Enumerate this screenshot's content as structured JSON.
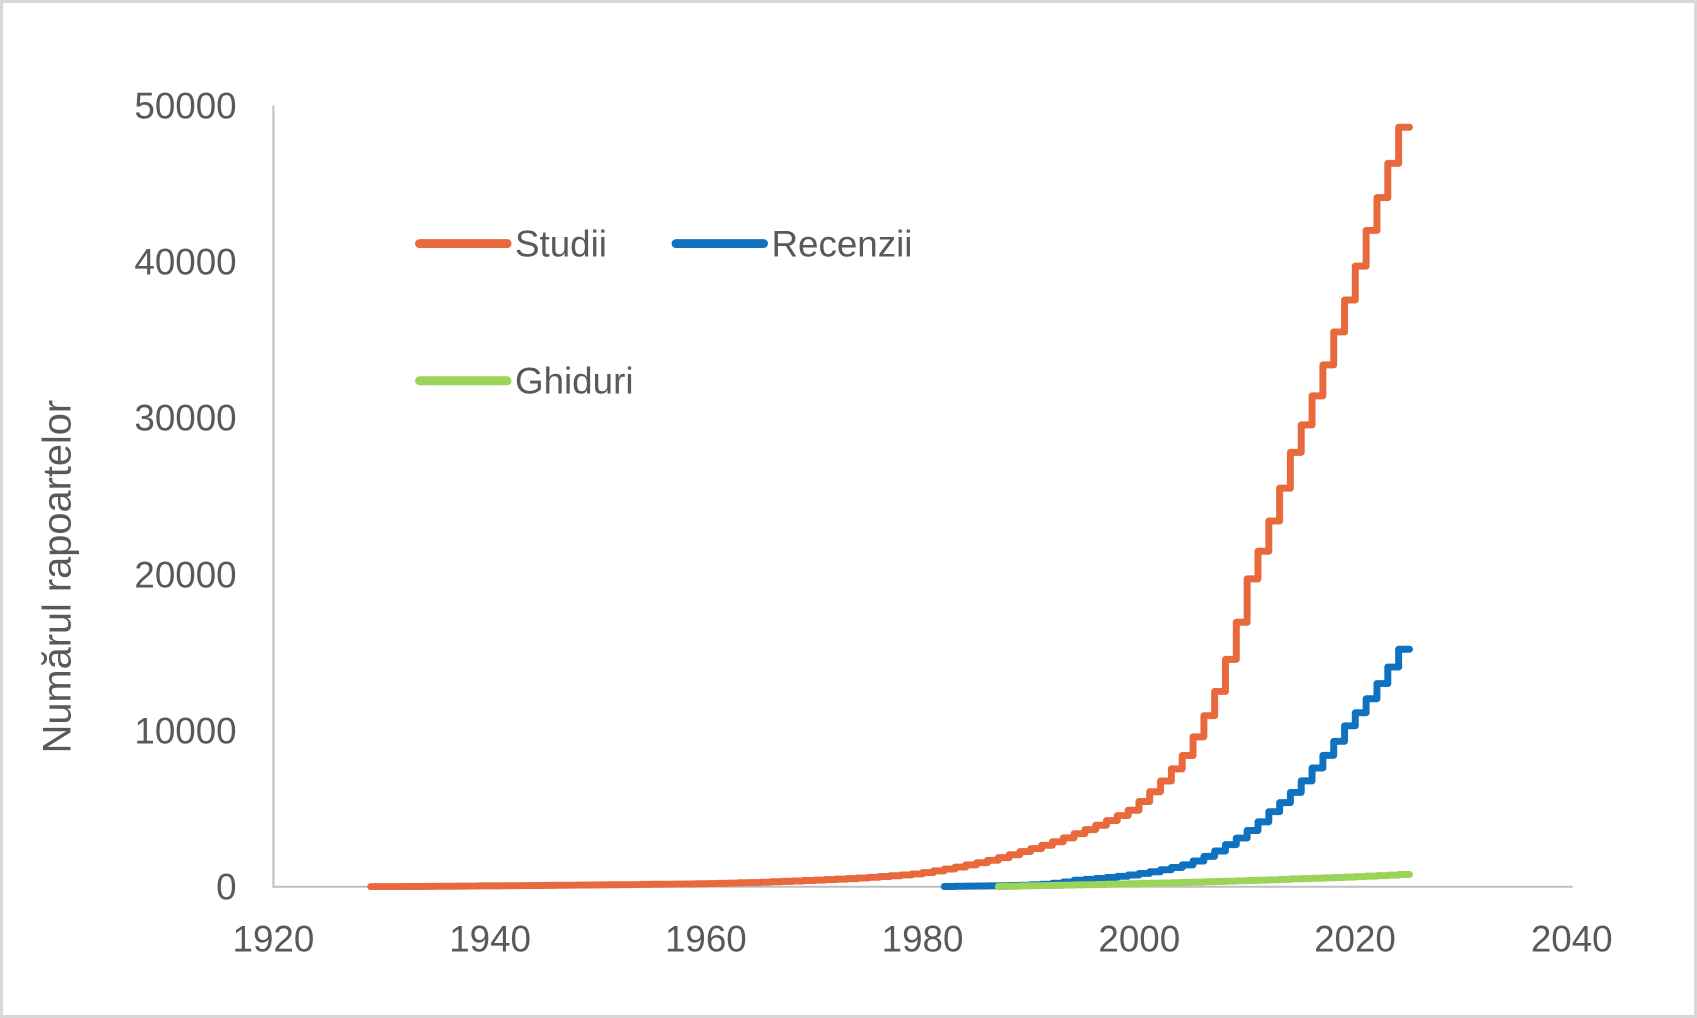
{
  "chart_data": {
    "type": "line",
    "subtype": "cumulative-step-curves",
    "title": "",
    "xlabel": "",
    "ylabel": "Numărul rapoartelor",
    "xlim": [
      1920,
      2040
    ],
    "ylim": [
      0,
      50000
    ],
    "grid": false,
    "legend_position": "inside-top-left-two-rows",
    "x_ticks": [
      "1920",
      "1940",
      "1960",
      "1980",
      "2000",
      "2020",
      "2040"
    ],
    "y_ticks": [
      "0",
      "10000",
      "20000",
      "30000",
      "40000",
      "50000"
    ],
    "axis_color": "#BFBFBF",
    "text_color": "#595959",
    "series": [
      {
        "name": "Studii",
        "color": "#E8693B",
        "first_year": 1929,
        "last_year": 2025,
        "final_value": 48600,
        "anchor_points": [
          [
            1929,
            8
          ],
          [
            1935,
            25
          ],
          [
            1940,
            55
          ],
          [
            1945,
            80
          ],
          [
            1950,
            115
          ],
          [
            1955,
            150
          ],
          [
            1960,
            190
          ],
          [
            1965,
            270
          ],
          [
            1970,
            400
          ],
          [
            1975,
            560
          ],
          [
            1980,
            820
          ],
          [
            1985,
            1400
          ],
          [
            1990,
            2250
          ],
          [
            1995,
            3400
          ],
          [
            2000,
            4900
          ],
          [
            2005,
            8400
          ],
          [
            2008,
            12500
          ],
          [
            2011,
            19700
          ],
          [
            2015,
            27800
          ],
          [
            2019,
            35500
          ],
          [
            2022,
            42000
          ],
          [
            2025,
            48600
          ]
        ]
      },
      {
        "name": "Recenzii",
        "color": "#0F72C1",
        "first_year": 1982,
        "last_year": 2025,
        "final_value": 15200,
        "anchor_points": [
          [
            1982,
            15
          ],
          [
            1985,
            40
          ],
          [
            1990,
            100
          ],
          [
            1992,
            160
          ],
          [
            1995,
            420
          ],
          [
            2000,
            750
          ],
          [
            2005,
            1400
          ],
          [
            2009,
            2700
          ],
          [
            2013,
            4800
          ],
          [
            2017,
            7600
          ],
          [
            2020,
            10300
          ],
          [
            2023,
            13000
          ],
          [
            2025,
            15200
          ]
        ]
      },
      {
        "name": "Ghiduri",
        "color": "#9CD45A",
        "first_year": 1987,
        "last_year": 2025,
        "final_value": 780,
        "anchor_points": [
          [
            1987,
            10
          ],
          [
            1990,
            60
          ],
          [
            1995,
            120
          ],
          [
            2000,
            200
          ],
          [
            2005,
            280
          ],
          [
            2010,
            380
          ],
          [
            2015,
            500
          ],
          [
            2020,
            620
          ],
          [
            2025,
            780
          ]
        ]
      }
    ]
  }
}
